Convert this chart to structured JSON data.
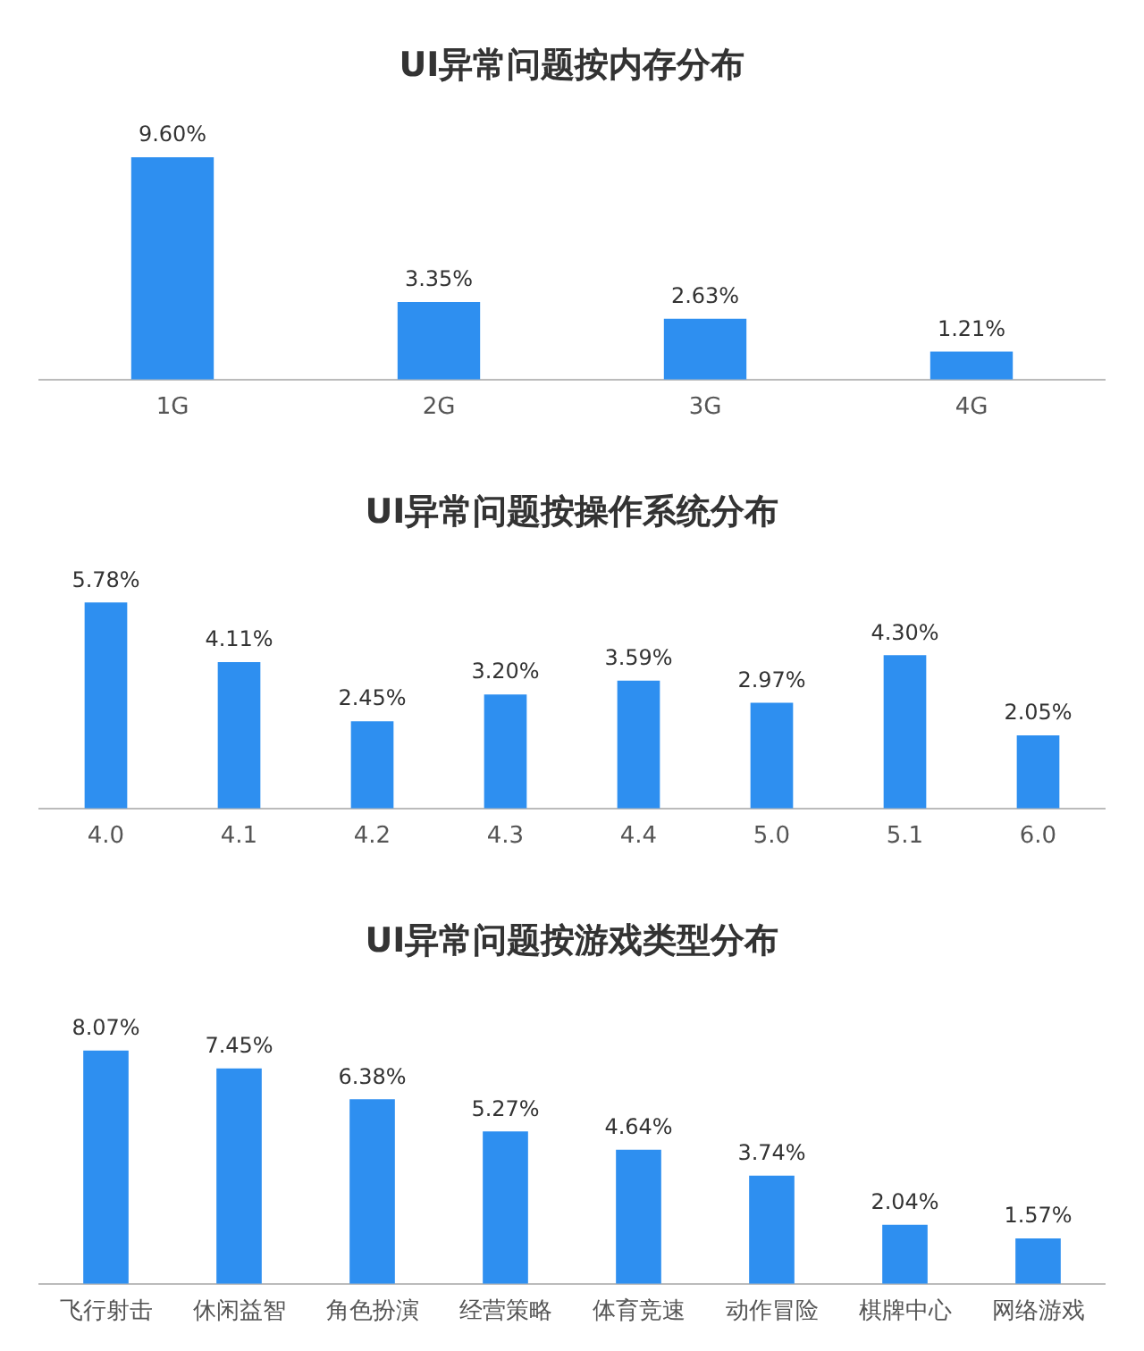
{
  "chart_data": [
    {
      "type": "bar",
      "title": "UI异常问题按内存分布",
      "categories": [
        "1G",
        "2G",
        "3G",
        "4G"
      ],
      "values": [
        9.6,
        3.35,
        2.63,
        1.21
      ],
      "color": "#2e8ff0",
      "value_labels": [
        "9.60%",
        "3.35%",
        "2.63%",
        "1.21%"
      ]
    },
    {
      "type": "bar",
      "title": "UI异常问题按操作系统分布",
      "categories": [
        "4.0",
        "4.1",
        "4.2",
        "4.3",
        "4.4",
        "5.0",
        "5.1",
        "6.0"
      ],
      "values": [
        5.78,
        4.11,
        2.45,
        3.2,
        3.59,
        2.97,
        4.3,
        2.05
      ],
      "color": "#2e8ff0",
      "value_labels": [
        "5.78%",
        "4.11%",
        "2.45%",
        "3.20%",
        "3.59%",
        "2.97%",
        "4.30%",
        "2.05%"
      ]
    },
    {
      "type": "bar",
      "title": "UI异常问题按游戏类型分布",
      "categories": [
        "飞行射击",
        "休闲益智",
        "角色扮演",
        "经营策略",
        "体育竞速",
        "动作冒险",
        "棋牌中心",
        "网络游戏"
      ],
      "values": [
        8.07,
        7.45,
        6.38,
        5.27,
        4.64,
        3.74,
        2.04,
        1.57
      ],
      "color": "#2e8ff0",
      "value_labels": [
        "8.07%",
        "7.45%",
        "6.38%",
        "5.27%",
        "4.64%",
        "3.74%",
        "2.04%",
        "1.57%"
      ]
    }
  ]
}
